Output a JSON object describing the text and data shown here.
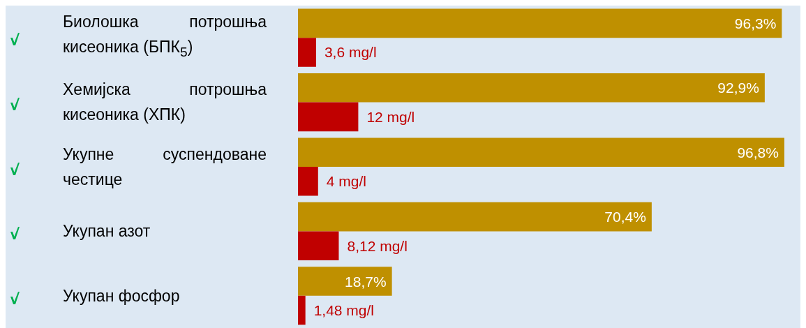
{
  "chart_data": {
    "type": "bar",
    "orientation": "horizontal",
    "xlim": [
      0,
      100
    ],
    "categories": [
      "Биолошка потрошња кисеоника (БПК$_{5}$)",
      "Хемијска потрошња кисеоника (ХПК)",
      "Укупне суспендоване честице",
      "Укупан азот",
      "Укупан фосфор"
    ],
    "series": [
      {
        "color": "#bf9000",
        "values": [
          96.3,
          92.9,
          96.8,
          70.4,
          18.7
        ],
        "value_labels": [
          "96,3%",
          "92,9%",
          "96,8%",
          "70,4%",
          "18,7%"
        ]
      },
      {
        "color": "#c00000",
        "values": [
          3.6,
          12,
          4,
          8.12,
          1.48
        ],
        "value_labels": [
          "3,6 mg/l",
          "12 mg/l",
          "4 mg/l",
          "8,12 mg/l",
          "1,48 mg/l"
        ]
      }
    ]
  }
}
